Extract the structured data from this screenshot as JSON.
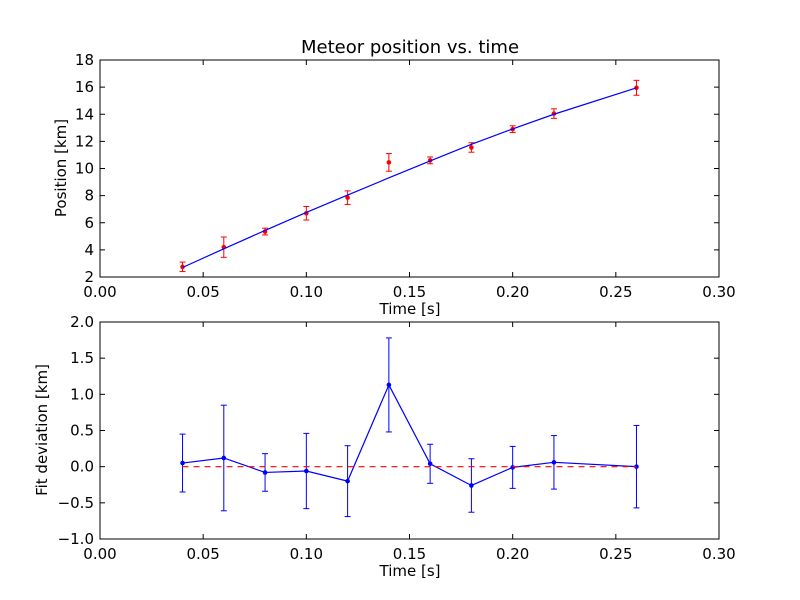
{
  "chart_data": [
    {
      "type": "scatter",
      "title": "Meteor position vs. time",
      "xlabel": "Time [s]",
      "ylabel": "Position [km]",
      "xlim": [
        0.0,
        0.3
      ],
      "ylim": [
        2,
        18
      ],
      "x_ticks": [
        "0.00",
        "0.05",
        "0.10",
        "0.15",
        "0.20",
        "0.25",
        "0.30"
      ],
      "y_ticks": [
        "2",
        "4",
        "6",
        "8",
        "10",
        "12",
        "14",
        "16",
        "18"
      ],
      "grid": false,
      "series": [
        {
          "kind": "points-with-error-bars",
          "color": "#ff0000",
          "x": [
            0.04,
            0.06,
            0.08,
            0.1,
            0.12,
            0.14,
            0.16,
            0.18,
            0.2,
            0.22,
            0.26
          ],
          "y": [
            2.75,
            4.2,
            5.35,
            6.7,
            7.85,
            10.45,
            10.6,
            11.55,
            12.9,
            14.05,
            15.95
          ],
          "err": [
            0.35,
            0.75,
            0.25,
            0.5,
            0.5,
            0.65,
            0.25,
            0.35,
            0.25,
            0.35,
            0.55
          ]
        },
        {
          "kind": "fit-line",
          "color": "#0000ff",
          "x": [
            0.04,
            0.06,
            0.08,
            0.1,
            0.12,
            0.14,
            0.16,
            0.18,
            0.2,
            0.22,
            0.26
          ],
          "y": [
            2.7,
            4.08,
            5.43,
            6.76,
            8.04,
            9.31,
            10.56,
            11.78,
            12.92,
            14.0,
            15.95
          ]
        }
      ]
    },
    {
      "type": "line",
      "xlabel": "Time [s]",
      "ylabel": "Fit deviation [km]",
      "xlim": [
        0.0,
        0.3
      ],
      "ylim": [
        -1.0,
        2.0
      ],
      "x_ticks": [
        "0.00",
        "0.05",
        "0.10",
        "0.15",
        "0.20",
        "0.25",
        "0.30"
      ],
      "y_ticks": [
        "−1.0",
        "−0.5",
        "0.0",
        "0.5",
        "1.0",
        "1.5",
        "2.0"
      ],
      "grid": false,
      "series": [
        {
          "kind": "line-with-error-bars",
          "color": "#0000ff",
          "x": [
            0.04,
            0.06,
            0.08,
            0.1,
            0.12,
            0.14,
            0.16,
            0.18,
            0.2,
            0.22,
            0.26
          ],
          "y": [
            0.05,
            0.12,
            -0.08,
            -0.06,
            -0.2,
            1.13,
            0.04,
            -0.26,
            -0.01,
            0.06,
            0.0
          ],
          "err": [
            0.4,
            0.73,
            0.26,
            0.52,
            0.49,
            0.65,
            0.27,
            0.37,
            0.29,
            0.37,
            0.57
          ]
        },
        {
          "kind": "reference-line",
          "style": "dashed",
          "color": "#ff0000",
          "x": [
            0.04,
            0.26
          ],
          "y": [
            0.0,
            0.0
          ]
        }
      ]
    }
  ]
}
